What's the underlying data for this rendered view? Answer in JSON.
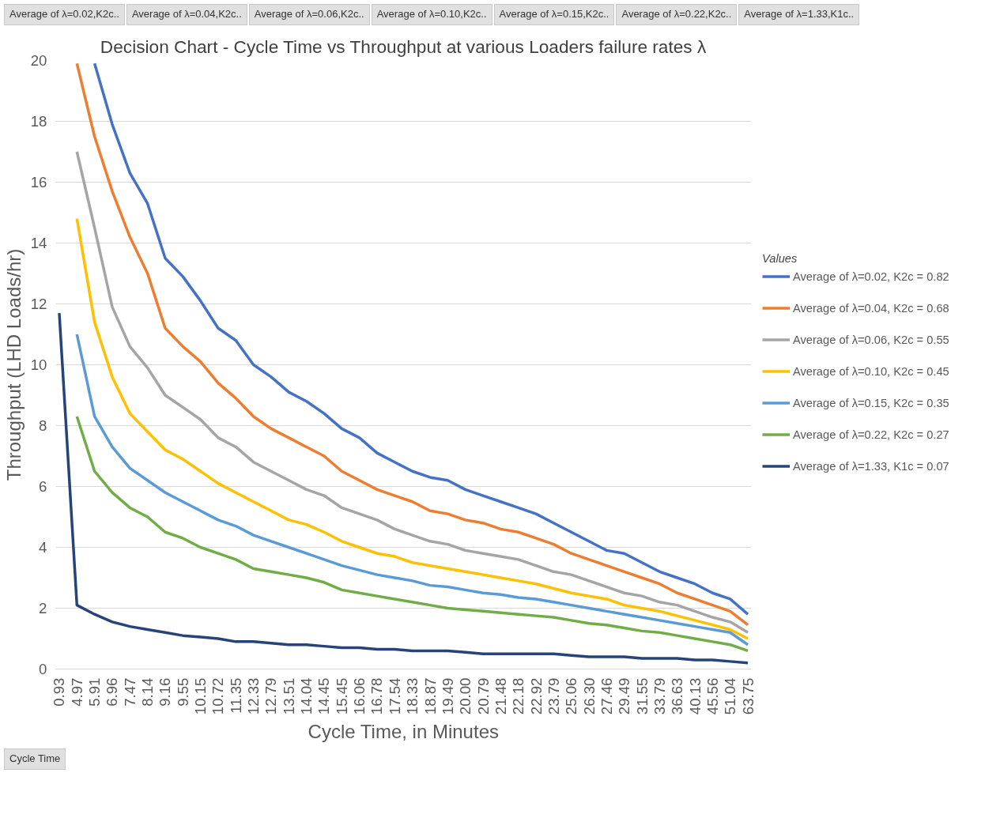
{
  "chart_data": {
    "type": "line",
    "title": "Decision Chart - Cycle Time vs Throughput at various Loaders failure rates λ",
    "xlabel": "Cycle Time, in Minutes",
    "ylabel": "Throughput (LHD Loads/hr)",
    "legend_title": "Values",
    "legend": "right",
    "grid": "y",
    "marker": "none",
    "line_style": "solid",
    "ylim": [
      0,
      20
    ],
    "yticks": [
      0,
      2,
      4,
      6,
      8,
      10,
      12,
      14,
      16,
      18,
      20
    ],
    "annotations": [
      "Average of λ=0.02,K2c..",
      "Average of λ=0.04,K2c..",
      "Average of λ=0.06,K2c..",
      "Average of λ=0.10,K2c..",
      "Average of λ=0.15,K2c..",
      "Average of λ=0.22,K2c..",
      "Average of λ=1.33,K1c..",
      "Cycle Time"
    ],
    "categories": [
      "0.93",
      "4.97",
      "5.91",
      "6.96",
      "7.47",
      "8.14",
      "9.16",
      "9.55",
      "10.15",
      "10.72",
      "11.35",
      "12.33",
      "12.79",
      "13.51",
      "14.04",
      "14.45",
      "15.45",
      "16.06",
      "16.78",
      "17.54",
      "18.33",
      "18.87",
      "19.49",
      "20.00",
      "20.79",
      "21.48",
      "22.18",
      "22.92",
      "23.79",
      "25.06",
      "26.30",
      "27.46",
      "29.49",
      "31.55",
      "33.79",
      "36.63",
      "40.13",
      "45.56",
      "51.04",
      "63.75"
    ],
    "series": [
      {
        "name": "Average of λ=0.02, K2c = 0.82",
        "color": "#4472c4",
        "values": [
          null,
          null,
          19.9,
          17.9,
          16.3,
          15.3,
          13.5,
          12.9,
          12.1,
          11.2,
          10.8,
          10.0,
          9.6,
          9.1,
          8.8,
          8.4,
          7.9,
          7.6,
          7.1,
          6.8,
          6.5,
          6.3,
          6.2,
          5.9,
          5.7,
          5.5,
          5.3,
          5.1,
          4.8,
          4.5,
          4.2,
          3.9,
          3.8,
          3.5,
          3.2,
          3.0,
          2.8,
          2.5,
          2.3,
          1.8
        ]
      },
      {
        "name": "Average of λ=0.04, K2c = 0.68",
        "color": "#ed7d31",
        "values": [
          null,
          19.9,
          17.5,
          15.7,
          14.2,
          13.0,
          11.2,
          10.6,
          10.1,
          9.4,
          8.9,
          8.3,
          7.9,
          7.6,
          7.3,
          7.0,
          6.5,
          6.2,
          5.9,
          5.7,
          5.5,
          5.2,
          5.1,
          4.9,
          4.8,
          4.6,
          4.5,
          4.3,
          4.1,
          3.8,
          3.6,
          3.4,
          3.2,
          3.0,
          2.8,
          2.5,
          2.3,
          2.1,
          1.9,
          1.45
        ]
      },
      {
        "name": "Average of λ=0.06, K2c = 0.55",
        "color": "#a5a5a5",
        "values": [
          null,
          17.0,
          14.5,
          11.9,
          10.6,
          9.9,
          9.0,
          8.6,
          8.2,
          7.6,
          7.3,
          6.8,
          6.5,
          6.2,
          5.9,
          5.7,
          5.3,
          5.1,
          4.9,
          4.6,
          4.4,
          4.2,
          4.1,
          3.9,
          3.8,
          3.7,
          3.6,
          3.4,
          3.2,
          3.1,
          2.9,
          2.7,
          2.5,
          2.4,
          2.2,
          2.1,
          1.9,
          1.7,
          1.55,
          1.2
        ]
      },
      {
        "name": "Average of λ=0.10, K2c = 0.45",
        "color": "#ffc000",
        "values": [
          null,
          14.8,
          11.4,
          9.6,
          8.4,
          7.8,
          7.2,
          6.9,
          6.5,
          6.1,
          5.8,
          5.5,
          5.2,
          4.9,
          4.75,
          4.5,
          4.2,
          4.0,
          3.8,
          3.7,
          3.5,
          3.4,
          3.3,
          3.2,
          3.1,
          3.0,
          2.9,
          2.8,
          2.65,
          2.5,
          2.4,
          2.3,
          2.1,
          2.0,
          1.9,
          1.75,
          1.6,
          1.45,
          1.3,
          1.0
        ]
      },
      {
        "name": "Average of λ=0.15, K2c = 0.35",
        "color": "#5b9bd5",
        "values": [
          null,
          11.0,
          8.3,
          7.3,
          6.6,
          6.2,
          5.8,
          5.5,
          5.2,
          4.9,
          4.7,
          4.4,
          4.2,
          4.0,
          3.8,
          3.6,
          3.4,
          3.25,
          3.1,
          3.0,
          2.9,
          2.75,
          2.7,
          2.6,
          2.5,
          2.45,
          2.35,
          2.3,
          2.2,
          2.1,
          2.0,
          1.9,
          1.8,
          1.7,
          1.6,
          1.5,
          1.4,
          1.3,
          1.2,
          0.8
        ]
      },
      {
        "name": "Average of λ=0.22, K2c = 0.27",
        "color": "#70ad47",
        "values": [
          null,
          8.3,
          6.5,
          5.8,
          5.3,
          5.0,
          4.5,
          4.3,
          4.0,
          3.8,
          3.6,
          3.3,
          3.2,
          3.1,
          3.0,
          2.85,
          2.6,
          2.5,
          2.4,
          2.3,
          2.2,
          2.1,
          2.0,
          1.95,
          1.9,
          1.85,
          1.8,
          1.75,
          1.7,
          1.6,
          1.5,
          1.45,
          1.35,
          1.25,
          1.2,
          1.1,
          1.0,
          0.9,
          0.8,
          0.6
        ]
      },
      {
        "name": "Average of λ=1.33, K1c = 0.07",
        "color": "#264478",
        "values": [
          11.7,
          2.1,
          1.8,
          1.55,
          1.4,
          1.3,
          1.2,
          1.1,
          1.05,
          1.0,
          0.9,
          0.9,
          0.85,
          0.8,
          0.8,
          0.75,
          0.7,
          0.7,
          0.65,
          0.65,
          0.6,
          0.6,
          0.6,
          0.55,
          0.5,
          0.5,
          0.5,
          0.5,
          0.5,
          0.45,
          0.4,
          0.4,
          0.4,
          0.35,
          0.35,
          0.35,
          0.3,
          0.3,
          0.25,
          0.2
        ]
      }
    ]
  }
}
